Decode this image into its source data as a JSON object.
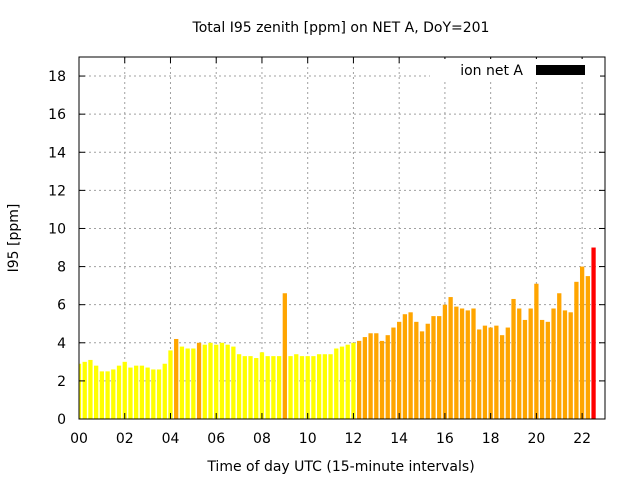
{
  "chart_data": {
    "type": "bar",
    "title": "Total I95 zenith [ppm] on NET A, DoY=201",
    "xlabel": "Time of day UTC (15-minute intervals)",
    "ylabel": "I95 [ppm]",
    "xlim": [
      0,
      23
    ],
    "ylim": [
      0,
      19
    ],
    "xticks": [
      "00",
      "02",
      "04",
      "06",
      "08",
      "10",
      "12",
      "14",
      "16",
      "18",
      "20",
      "22"
    ],
    "yticks": [
      "0",
      "2",
      "4",
      "6",
      "8",
      "10",
      "12",
      "14",
      "16",
      "18"
    ],
    "grid": true,
    "legend": {
      "label": "ion net A",
      "color": "#000000",
      "position": "top-right"
    },
    "colors": {
      "low": "#ffff00",
      "mid": "#ffa500",
      "high": "#ff0000"
    },
    "series": [
      {
        "interval_hours": 0.25,
        "start_hour": 0,
        "values": [
          2.9,
          3.0,
          3.1,
          2.8,
          2.5,
          2.5,
          2.6,
          2.8,
          3.0,
          2.7,
          2.8,
          2.8,
          2.7,
          2.6,
          2.6,
          2.9,
          3.6,
          4.2,
          3.8,
          3.7,
          3.7,
          4.0,
          3.9,
          4.0,
          3.9,
          4.0,
          3.9,
          3.8,
          3.4,
          3.3,
          3.3,
          3.2,
          3.5,
          3.3,
          3.3,
          3.3,
          6.6,
          3.3,
          3.4,
          3.3,
          3.3,
          3.3,
          3.4,
          3.4,
          3.4,
          3.7,
          3.8,
          3.9,
          4.0,
          4.1,
          4.3,
          4.5,
          4.5,
          4.1,
          4.4,
          4.8,
          5.1,
          5.5,
          5.6,
          5.1,
          4.6,
          5.0,
          5.4,
          5.4,
          6.0,
          6.4,
          5.9,
          5.8,
          5.7,
          5.8,
          4.7,
          4.9,
          4.8,
          4.9,
          4.4,
          4.8,
          6.3,
          5.8,
          5.2,
          5.8,
          7.1,
          5.2,
          5.1,
          5.8,
          6.6,
          5.7,
          5.6,
          7.2,
          8.0,
          7.5,
          9.0
        ],
        "colors": [
          "low",
          "low",
          "low",
          "low",
          "low",
          "low",
          "low",
          "low",
          "low",
          "low",
          "low",
          "low",
          "low",
          "low",
          "low",
          "low",
          "low",
          "mid",
          "low",
          "low",
          "low",
          "mid",
          "low",
          "low",
          "low",
          "low",
          "low",
          "low",
          "low",
          "low",
          "low",
          "low",
          "low",
          "low",
          "low",
          "low",
          "mid",
          "low",
          "low",
          "low",
          "low",
          "low",
          "low",
          "low",
          "low",
          "low",
          "low",
          "low",
          "low",
          "mid",
          "mid",
          "mid",
          "mid",
          "mid",
          "mid",
          "mid",
          "mid",
          "mid",
          "mid",
          "mid",
          "mid",
          "mid",
          "mid",
          "mid",
          "mid",
          "mid",
          "mid",
          "mid",
          "mid",
          "mid",
          "mid",
          "mid",
          "mid",
          "mid",
          "mid",
          "mid",
          "mid",
          "mid",
          "mid",
          "mid",
          "mid",
          "mid",
          "mid",
          "mid",
          "mid",
          "mid",
          "mid",
          "mid",
          "mid",
          "mid",
          "high"
        ]
      }
    ]
  }
}
